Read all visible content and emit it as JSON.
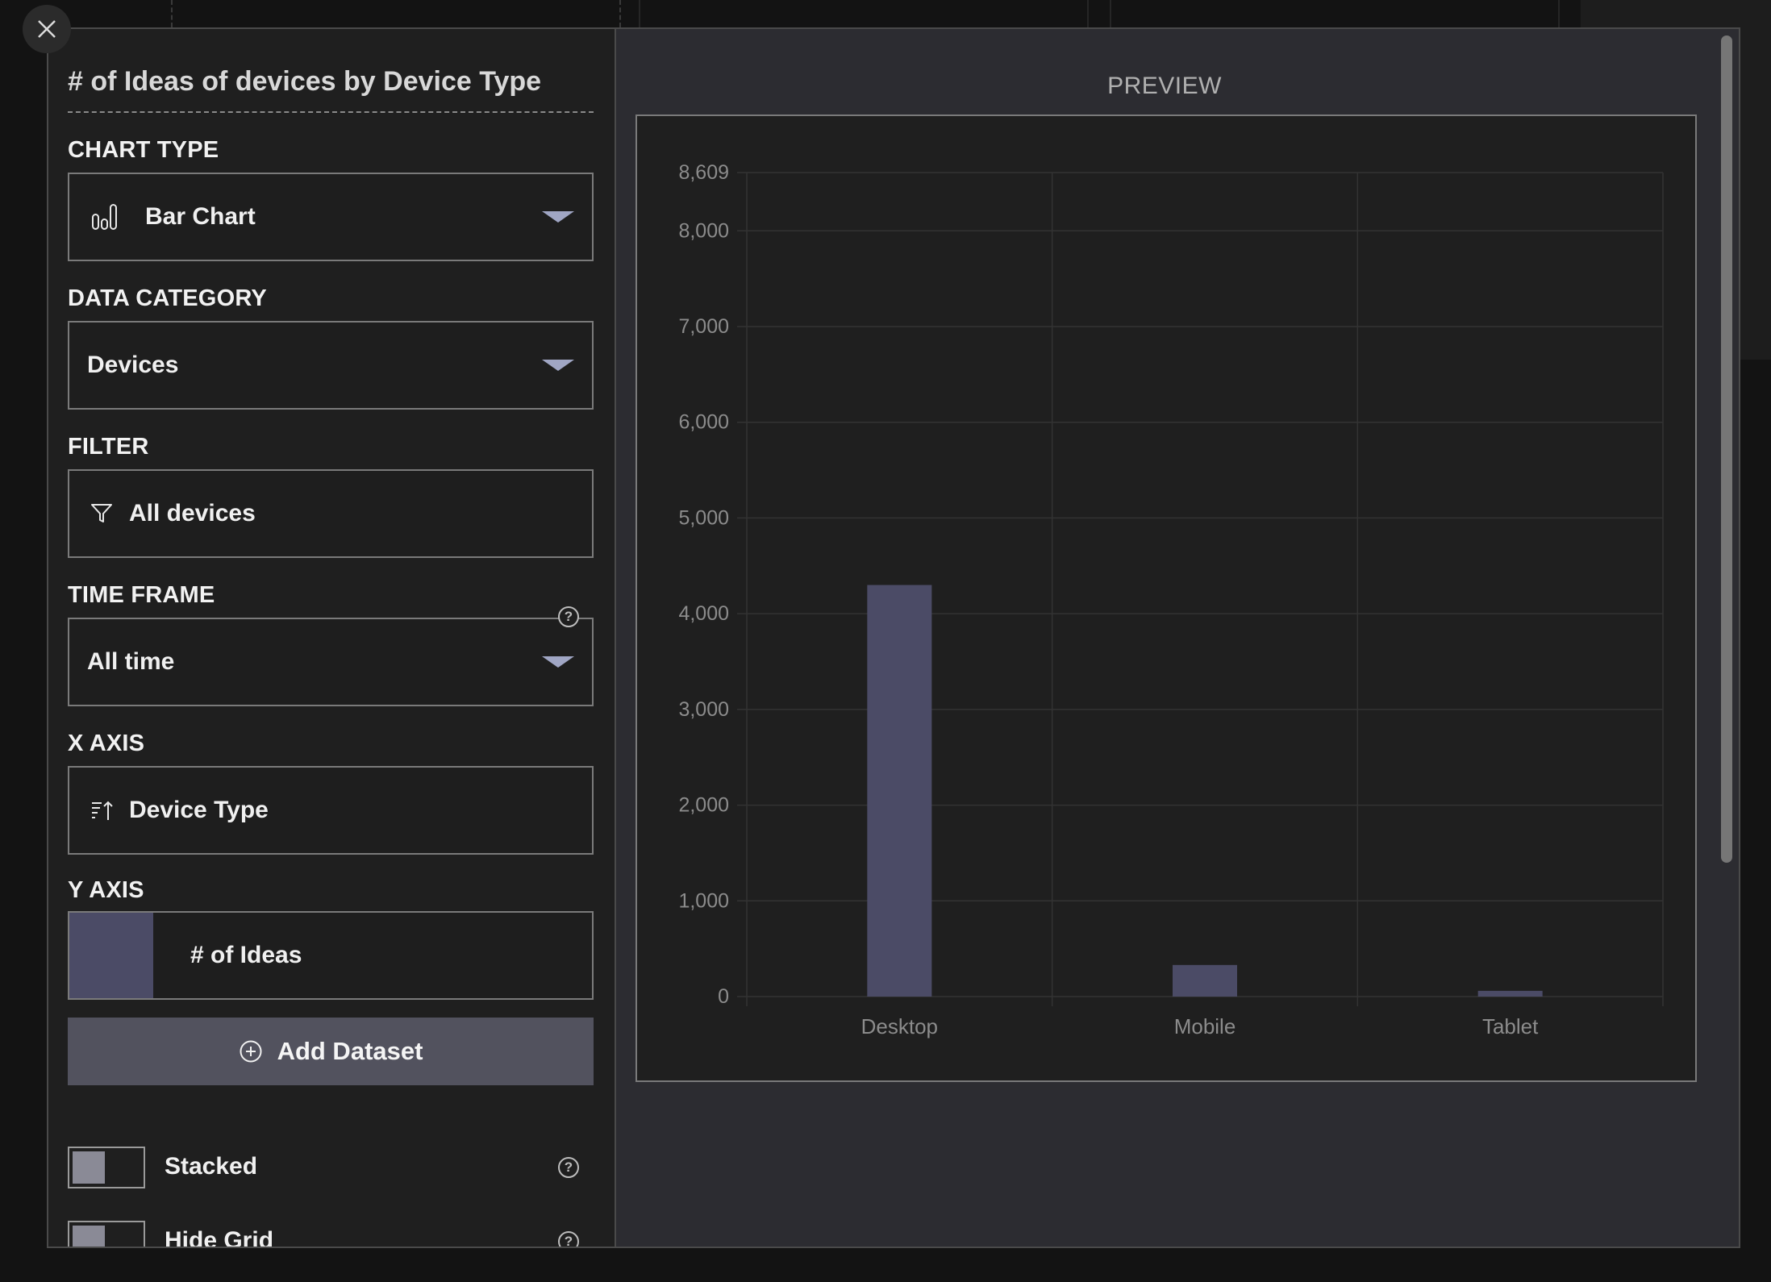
{
  "modal": {
    "close_label": "Close",
    "chart_title": "# of Ideas of devices by Device Type"
  },
  "config": {
    "chart_type": {
      "label": "CHART TYPE",
      "value": "Bar Chart"
    },
    "data_category": {
      "label": "DATA CATEGORY",
      "value": "Devices"
    },
    "filter": {
      "label": "FILTER",
      "value": "All devices"
    },
    "time_frame": {
      "label": "TIME FRAME",
      "value": "All time",
      "help": "?"
    },
    "x_axis": {
      "label": "X AXIS",
      "value": "Device Type"
    },
    "y_axis": {
      "label": "Y AXIS",
      "value": "# of Ideas",
      "swatch_color": "#4b4b66"
    },
    "add_dataset": "Add Dataset",
    "toggles": [
      {
        "label": "Stacked",
        "help": "?"
      },
      {
        "label": "Hide Grid",
        "help": "?"
      }
    ]
  },
  "preview": {
    "title": "PREVIEW"
  },
  "colors": {
    "bar": "#4b4b66",
    "grid": "#333333",
    "tick_text": "#8c8c8c",
    "accent_caret": "#a0a6c4"
  },
  "icons": {
    "close": "close-icon",
    "chart_type": "bar-chart-icon",
    "filter": "filter-icon",
    "x_axis": "sort-icon",
    "add": "plus-circle-icon",
    "help": "help-icon",
    "dropdown": "chevron-down-icon"
  },
  "chart_data": {
    "type": "bar",
    "categories": [
      "Desktop",
      "Mobile",
      "Tablet"
    ],
    "series": [
      {
        "name": "# of Ideas",
        "values": [
          4300,
          330,
          60
        ]
      }
    ],
    "title": "",
    "xlabel": "",
    "ylabel": "",
    "ylim": [
      0,
      8609
    ],
    "yticks": [
      0,
      1000,
      2000,
      3000,
      4000,
      5000,
      6000,
      7000,
      8000,
      8609
    ],
    "ytick_labels": [
      "0",
      "1,000",
      "2,000",
      "3,000",
      "4,000",
      "5,000",
      "6,000",
      "7,000",
      "8,000",
      "8,609"
    ],
    "grid": true,
    "legend": "none"
  }
}
